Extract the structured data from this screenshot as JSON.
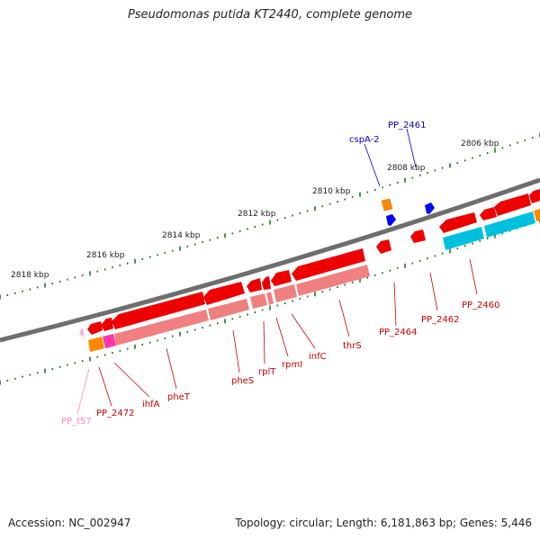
{
  "title": "Pseudomonas putida KT2440, complete genome",
  "footer": {
    "accession": "Accession: NC_002947",
    "topology": "Topology: circular; Length: 6,181,863 bp; Genes: 5,446"
  },
  "ticks": [
    "2806 kbp",
    "2808 kbp",
    "2810 kbp",
    "2812 kbp",
    "2814 kbp",
    "2816 kbp",
    "2818 kbp"
  ],
  "genes": [
    {
      "name": "PP_2461",
      "strand": "plus",
      "color": "#0000cc"
    },
    {
      "name": "cspA-2",
      "strand": "plus",
      "color": "#0000cc"
    },
    {
      "name": "PP_2460",
      "strand": "minus",
      "color": "#cc0000"
    },
    {
      "name": "PP_2462",
      "strand": "minus",
      "color": "#cc0000"
    },
    {
      "name": "PP_2464",
      "strand": "minus",
      "color": "#cc0000"
    },
    {
      "name": "thrS",
      "strand": "minus",
      "color": "#cc0000"
    },
    {
      "name": "infC",
      "strand": "minus",
      "color": "#cc0000"
    },
    {
      "name": "rpmI",
      "strand": "minus",
      "color": "#cc0000"
    },
    {
      "name": "rplT",
      "strand": "minus",
      "color": "#cc0000"
    },
    {
      "name": "pheS",
      "strand": "minus",
      "color": "#cc0000"
    },
    {
      "name": "pheT",
      "strand": "minus",
      "color": "#cc0000"
    },
    {
      "name": "ihfA",
      "strand": "minus",
      "color": "#cc0000"
    },
    {
      "name": "PP_2472",
      "strand": "minus",
      "color": "#cc0000"
    },
    {
      "name": "PP_t57",
      "strand": "minus",
      "color": "#ff88bb"
    }
  ],
  "colors": {
    "backbone": "#808080",
    "cds": "#ff0000",
    "cds_shade": "#f08080",
    "plus_cds": "#0000ff",
    "trna": "#ffaacc",
    "cyan_feature": "#00c0e0",
    "orange_feature": "#ff8800",
    "magenta_feature": "#ff33aa",
    "tick": "#1a7a1a"
  }
}
